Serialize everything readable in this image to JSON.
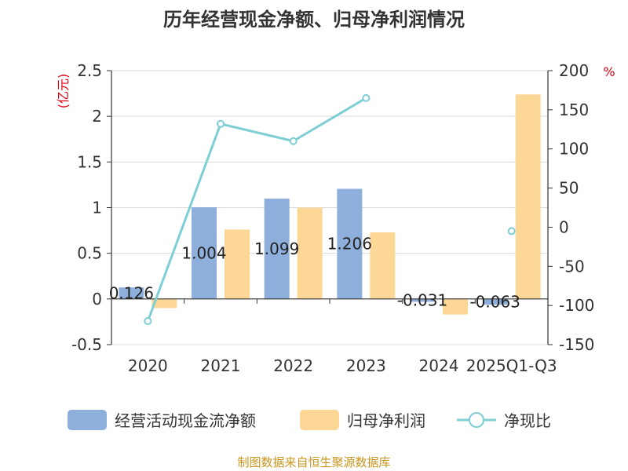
{
  "chart_data": {
    "type": "bar",
    "title": "历年经营现金净额、归母净利润情况",
    "categories": [
      "2020",
      "2021",
      "2022",
      "2023",
      "2024",
      "2025Q1-Q3"
    ],
    "series": [
      {
        "name": "经营活动现金流净额",
        "axis": "left",
        "kind": "bar",
        "color": "#8eafdc",
        "values": [
          0.126,
          1.004,
          1.099,
          1.206,
          -0.031,
          -0.063
        ],
        "labels": [
          "0.126",
          "1.004",
          "1.099",
          "1.206",
          "-0.031",
          "-0.063"
        ]
      },
      {
        "name": "归母净利润",
        "axis": "left",
        "kind": "bar",
        "color": "#fdd796",
        "values": [
          -0.1,
          0.76,
          1.0,
          0.73,
          -0.17,
          2.24
        ]
      },
      {
        "name": "净现比",
        "axis": "right",
        "kind": "line",
        "color": "#7ecfd4",
        "values": [
          -120,
          132,
          110,
          165,
          null,
          -5
        ]
      }
    ],
    "left_axis": {
      "unit": "(亿元)",
      "ylim": [
        -0.5,
        2.5
      ],
      "ticks": [
        -0.5,
        0,
        0.5,
        1,
        1.5,
        2,
        2.5
      ],
      "tick_labels": [
        "-0.5",
        "0",
        "0.5",
        "1",
        "1.5",
        "2",
        "2.5"
      ]
    },
    "right_axis": {
      "unit": "%",
      "ylim": [
        -150,
        200
      ],
      "ticks": [
        -150,
        -100,
        -50,
        0,
        50,
        100,
        150,
        200
      ],
      "tick_labels": [
        "-150",
        "-100",
        "-50",
        "0",
        "50",
        "100",
        "150",
        "200"
      ]
    },
    "legend_position": "bottom",
    "grid": true
  },
  "source": "制图数据来自恒生聚源数据库"
}
